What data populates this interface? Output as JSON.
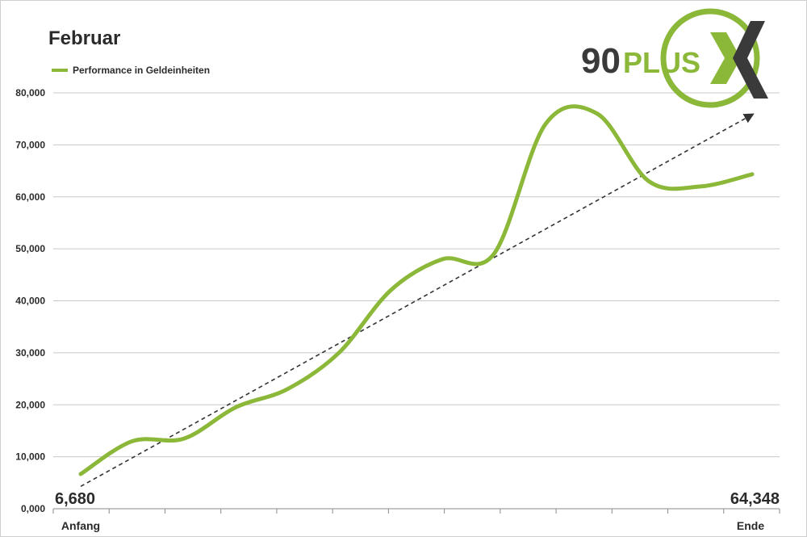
{
  "chart_data": {
    "type": "line",
    "title": "Februar",
    "categories": [
      "Anfang",
      "",
      "",
      "",
      "",
      "",
      "",
      "",
      "",
      "",
      "",
      "",
      "",
      "Ende"
    ],
    "series": [
      {
        "name": "Performance in Geldeinheiten",
        "color": "#8cb83a",
        "values": [
          6680,
          13000,
          13500,
          19500,
          23000,
          30000,
          42000,
          48000,
          49000,
          74000,
          76000,
          63000,
          62000,
          64348
        ]
      }
    ],
    "trendline": {
      "style": "dashed",
      "color": "#333333",
      "start": 4300,
      "end": 75800
    },
    "ylim": [
      0,
      80000
    ],
    "yticks": [
      0,
      10000,
      20000,
      30000,
      40000,
      50000,
      60000,
      70000,
      80000
    ],
    "ytick_labels": [
      "0,000",
      "10,000",
      "20,000",
      "30,000",
      "40,000",
      "50,000",
      "60,000",
      "70,000",
      "80,000"
    ],
    "data_labels": {
      "start": "6,680",
      "end": "64,348"
    },
    "grid": true,
    "legend_position": "top-left"
  },
  "logo": {
    "part1": "90",
    "part2": "PLUS",
    "accent": "#8cb83a",
    "dark": "#3a3a3a"
  }
}
